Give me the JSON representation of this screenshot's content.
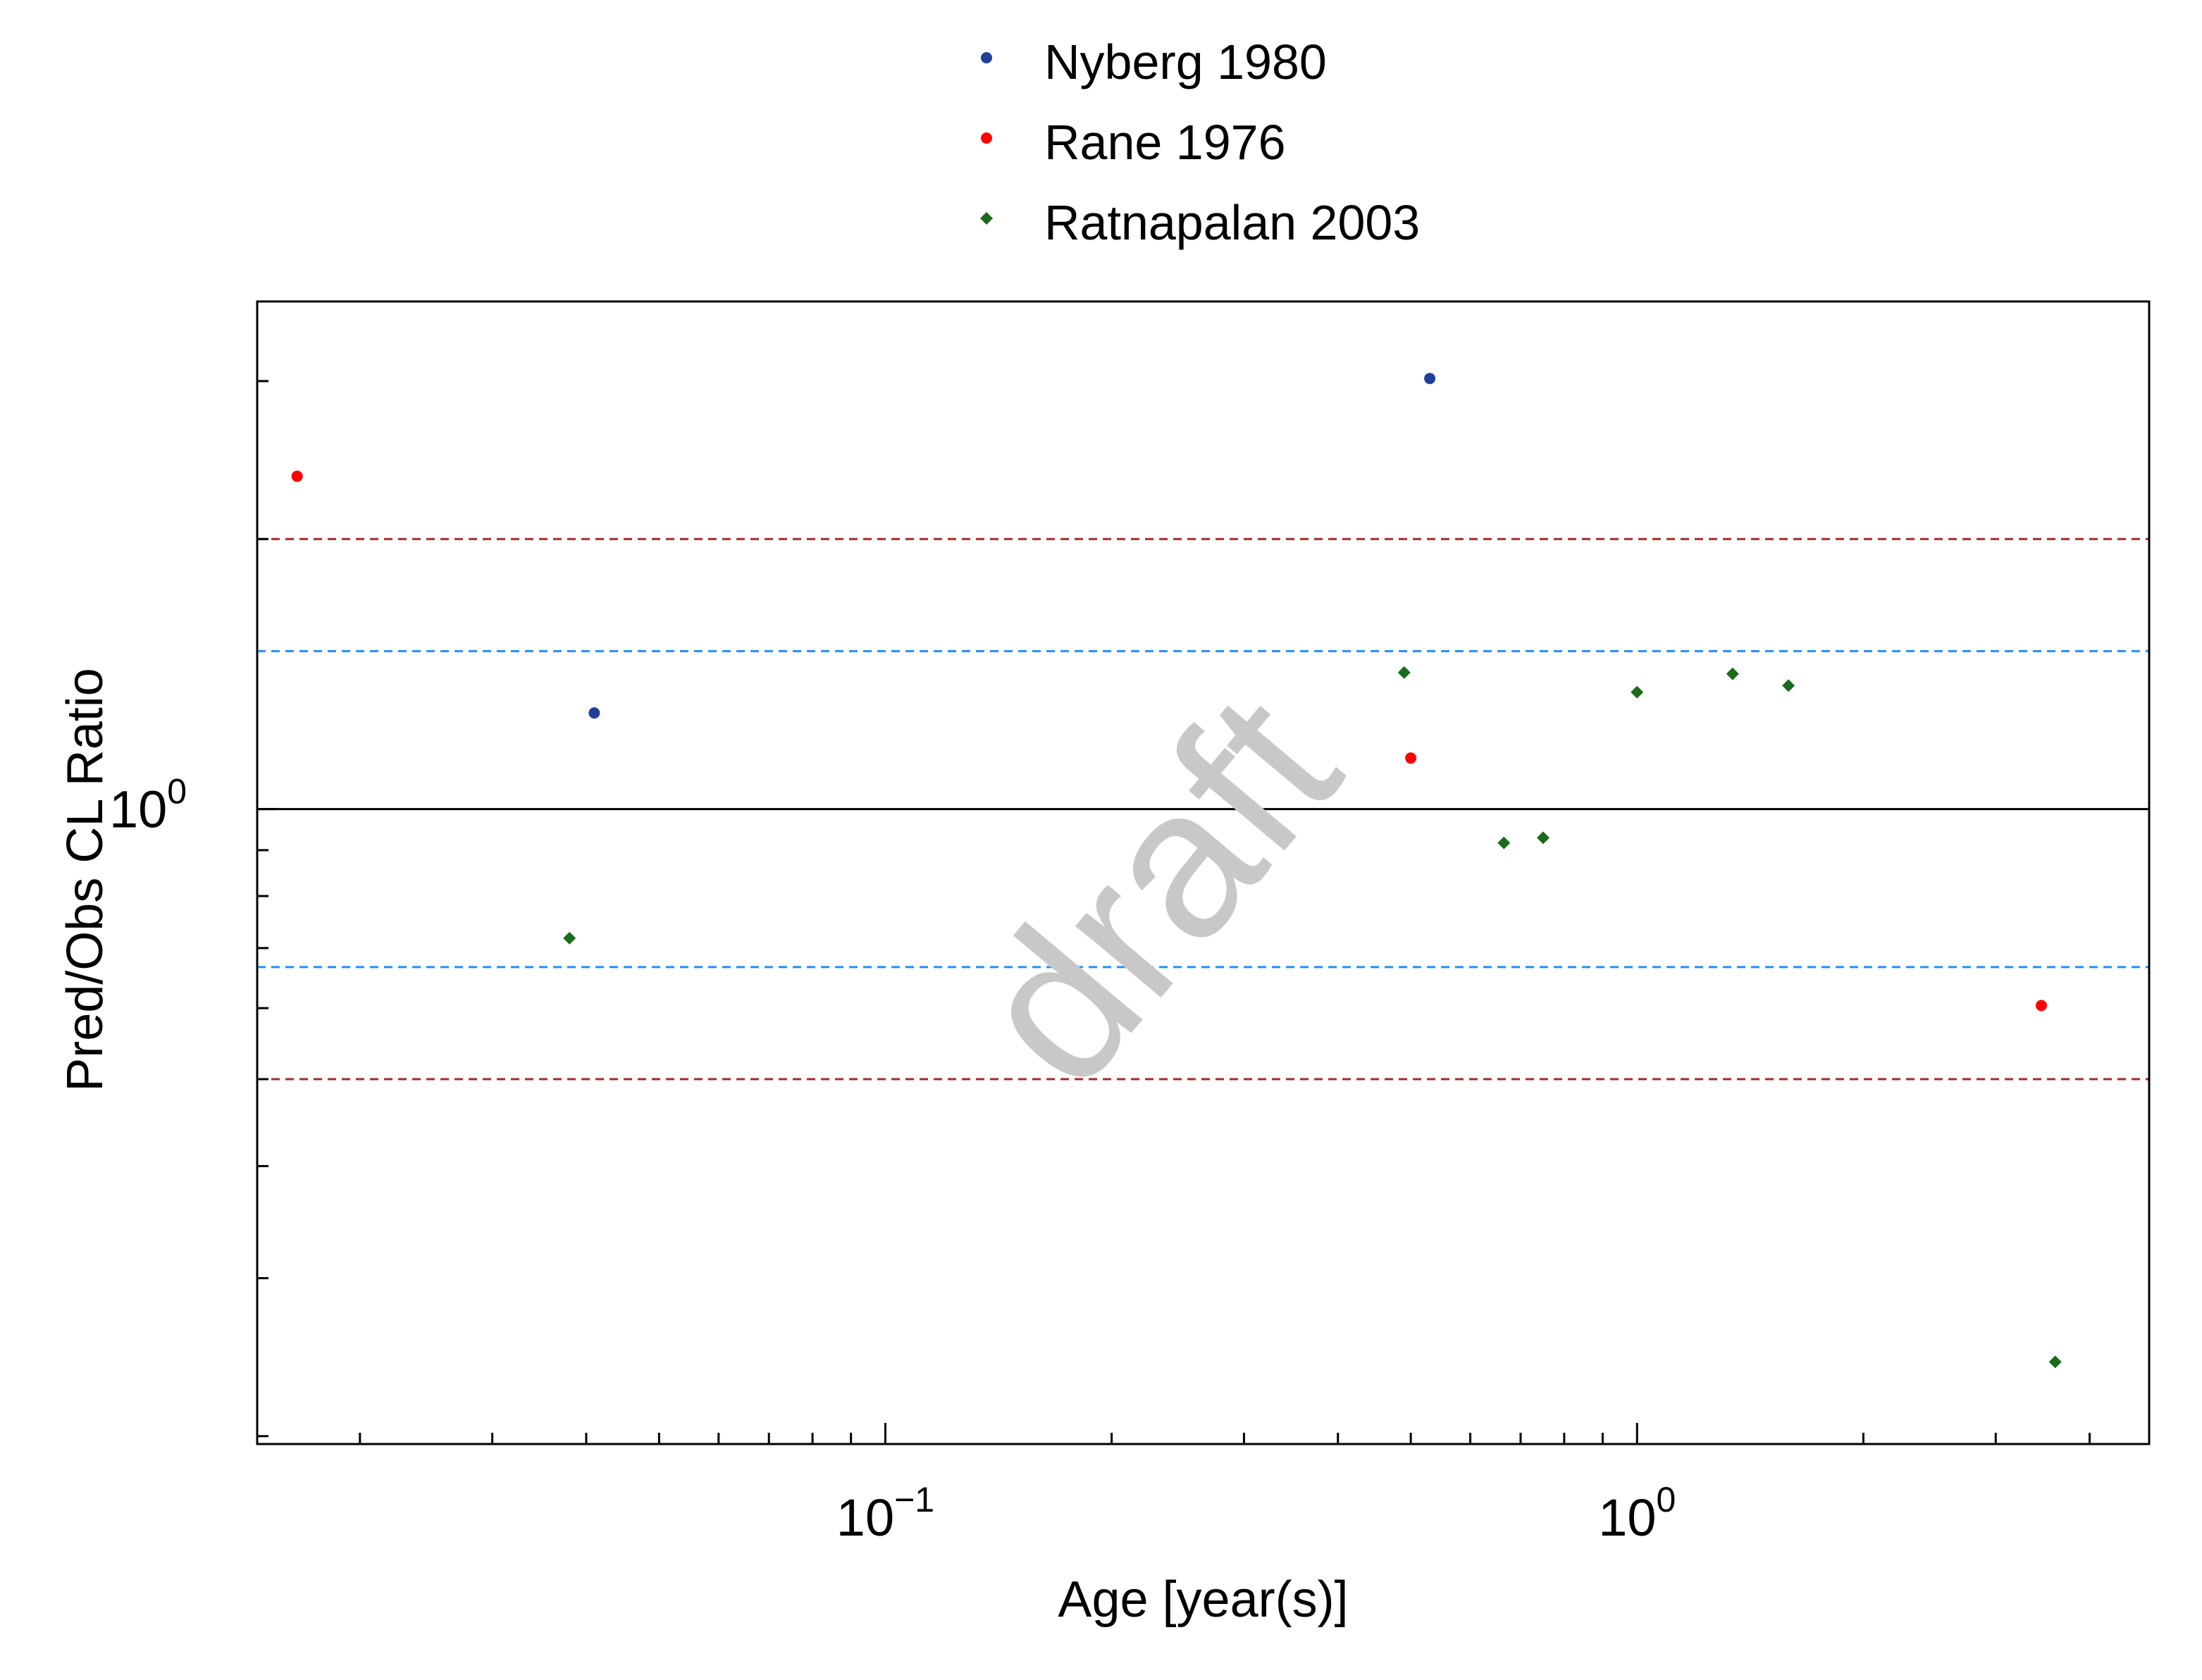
{
  "chart_data": {
    "type": "scatter",
    "xlabel": "Age [year(s)]",
    "ylabel": "Pred/Obs CL Ratio",
    "x_scale": "log",
    "y_scale": "log",
    "xlim": [
      0.0146,
      4.8
    ],
    "ylim": [
      0.196,
      3.68
    ],
    "x_ticks": [
      {
        "value": 0.1,
        "base": "10",
        "exp": "−1"
      },
      {
        "value": 1.0,
        "base": "10",
        "exp": "0"
      }
    ],
    "y_ticks": [
      {
        "value": 1.0,
        "base": "10",
        "exp": "0"
      }
    ],
    "reference_lines": [
      {
        "y": 1.0,
        "color": "#000000",
        "style": "solid"
      },
      {
        "y": 1.5,
        "color": "#1e90ff",
        "style": "dashed"
      },
      {
        "y": 0.6667,
        "color": "#1e90ff",
        "style": "dashed"
      },
      {
        "y": 2.0,
        "color": "#a52a2a",
        "style": "dashed"
      },
      {
        "y": 0.5,
        "color": "#a52a2a",
        "style": "dashed"
      }
    ],
    "legend_position": "top-center",
    "watermark": "draft",
    "series": [
      {
        "name": "Nyberg 1980",
        "color": "#1f3f99",
        "marker": "circle",
        "x": [
          0.041,
          0.53
        ],
        "y": [
          1.28,
          3.02
        ]
      },
      {
        "name": "Rane 1976",
        "color": "#ff0000",
        "marker": "circle",
        "x": [
          0.0165,
          0.5,
          3.45
        ],
        "y": [
          2.35,
          1.14,
          0.604
        ]
      },
      {
        "name": "Ratnapalan 2003",
        "color": "#1a6b1a",
        "marker": "diamond",
        "x": [
          0.038,
          0.49,
          0.665,
          0.75,
          1.0,
          1.34,
          1.59,
          3.6
        ],
        "y": [
          0.718,
          1.42,
          0.917,
          0.929,
          1.35,
          1.415,
          1.373,
          0.242
        ]
      }
    ]
  }
}
